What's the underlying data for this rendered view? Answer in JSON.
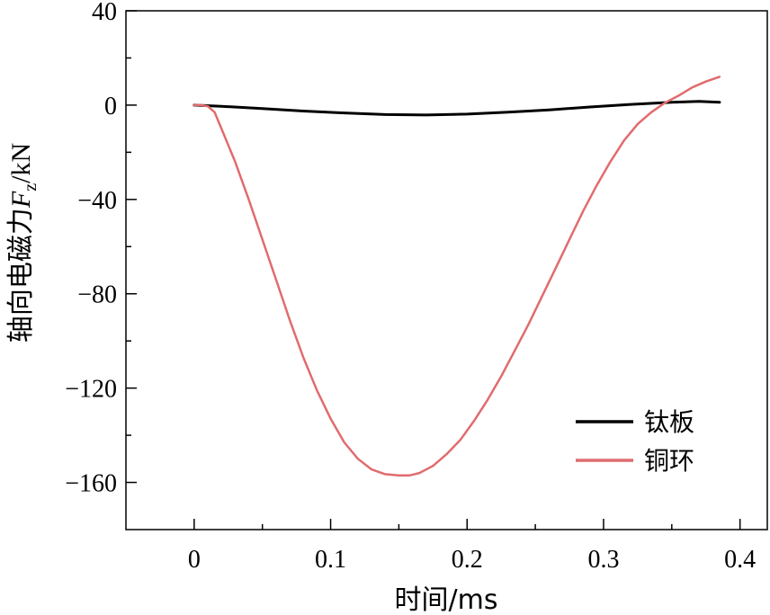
{
  "chart_data": {
    "type": "line",
    "title": "",
    "xlabel": "时间/ms",
    "ylabel": {
      "prefix": "轴向电磁力",
      "var": "F",
      "sub": "z",
      "unit": "/kN"
    },
    "xlim": [
      -0.05,
      0.42
    ],
    "ylim": [
      -180,
      40
    ],
    "xticks": [
      0,
      0.1,
      0.2,
      0.3,
      0.4
    ],
    "xtick_labels": [
      "0",
      "0.1",
      "0.2",
      "0.3",
      "0.4"
    ],
    "yticks": [
      40,
      0,
      -40,
      -80,
      -120,
      -160
    ],
    "ytick_labels": [
      "40",
      "0",
      "−40",
      "−80",
      "−120",
      "−160"
    ],
    "grid": false,
    "legend_position": "bottom-right",
    "series": [
      {
        "name": "钛板",
        "color": "#000000",
        "x": [
          0,
          0.02,
          0.05,
          0.08,
          0.11,
          0.14,
          0.17,
          0.2,
          0.23,
          0.26,
          0.29,
          0.32,
          0.35,
          0.37,
          0.385
        ],
        "y": [
          0,
          -0.5,
          -1.5,
          -2.5,
          -3.3,
          -4,
          -4.2,
          -3.8,
          -3,
          -2,
          -0.8,
          0.3,
          1.2,
          1.6,
          1.2
        ]
      },
      {
        "name": "铜环",
        "color": "#e06c6e",
        "x": [
          0,
          0.005,
          0.01,
          0.015,
          0.02,
          0.03,
          0.04,
          0.05,
          0.06,
          0.07,
          0.08,
          0.09,
          0.1,
          0.11,
          0.12,
          0.13,
          0.14,
          0.15,
          0.158,
          0.165,
          0.175,
          0.185,
          0.195,
          0.205,
          0.215,
          0.225,
          0.235,
          0.245,
          0.255,
          0.265,
          0.275,
          0.285,
          0.295,
          0.305,
          0.315,
          0.325,
          0.335,
          0.345,
          0.355,
          0.365,
          0.375,
          0.385
        ],
        "y": [
          0,
          0,
          -0.5,
          -3,
          -10,
          -24,
          -40,
          -57,
          -74,
          -91,
          -107,
          -121,
          -133,
          -143,
          -150,
          -154.5,
          -156.5,
          -157,
          -157,
          -156,
          -153,
          -148,
          -142,
          -134,
          -125,
          -115,
          -104,
          -93,
          -81,
          -69,
          -57,
          -45,
          -34,
          -24,
          -15,
          -8,
          -3,
          1,
          4,
          7.5,
          10,
          12
        ]
      }
    ]
  }
}
